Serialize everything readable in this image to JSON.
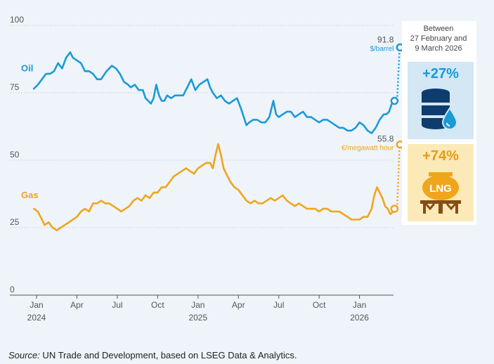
{
  "chart_data": {
    "type": "line",
    "title": "",
    "xlabel": "",
    "ylabel": "",
    "ylim": [
      0,
      100
    ],
    "yticks": [
      "0",
      "25",
      "50",
      "75",
      "100"
    ],
    "x_ticks": [
      {
        "label": "Jan",
        "year": "2024",
        "t": 0
      },
      {
        "label": "Apr",
        "year": "",
        "t": 3
      },
      {
        "label": "Jul",
        "year": "",
        "t": 6
      },
      {
        "label": "Oct",
        "year": "",
        "t": 9
      },
      {
        "label": "Jan",
        "year": "2025",
        "t": 12
      },
      {
        "label": "Apr",
        "year": "",
        "t": 15
      },
      {
        "label": "Jul",
        "year": "",
        "t": 18
      },
      {
        "label": "Oct",
        "year": "",
        "t": 21
      },
      {
        "label": "Jan",
        "year": "2026",
        "t": 24
      }
    ],
    "series": [
      {
        "name": "Oil",
        "unit": "$/barrel",
        "color": "#1a9ad6",
        "points": [
          [
            -0.2,
            76.5
          ],
          [
            0.1,
            78
          ],
          [
            0.4,
            80
          ],
          [
            0.7,
            82
          ],
          [
            1.0,
            82
          ],
          [
            1.3,
            83
          ],
          [
            1.6,
            86
          ],
          [
            1.9,
            84
          ],
          [
            2.2,
            88
          ],
          [
            2.5,
            90
          ],
          [
            2.7,
            88
          ],
          [
            3.0,
            87
          ],
          [
            3.3,
            86
          ],
          [
            3.6,
            83
          ],
          [
            3.9,
            83
          ],
          [
            4.2,
            82
          ],
          [
            4.5,
            80
          ],
          [
            4.8,
            80
          ],
          [
            5.2,
            83
          ],
          [
            5.6,
            85
          ],
          [
            5.9,
            84
          ],
          [
            6.2,
            82
          ],
          [
            6.5,
            79
          ],
          [
            6.8,
            78
          ],
          [
            7.0,
            77
          ],
          [
            7.3,
            78
          ],
          [
            7.6,
            76
          ],
          [
            7.9,
            76
          ],
          [
            8.1,
            73
          ],
          [
            8.3,
            72
          ],
          [
            8.5,
            71
          ],
          [
            8.7,
            73
          ],
          [
            8.9,
            78
          ],
          [
            9.1,
            74
          ],
          [
            9.3,
            72
          ],
          [
            9.5,
            72
          ],
          [
            9.7,
            74
          ],
          [
            10.0,
            73
          ],
          [
            10.3,
            74
          ],
          [
            10.6,
            74
          ],
          [
            10.9,
            74
          ],
          [
            11.2,
            77
          ],
          [
            11.5,
            80
          ],
          [
            11.8,
            76
          ],
          [
            12.1,
            78
          ],
          [
            12.4,
            79
          ],
          [
            12.7,
            80
          ],
          [
            12.9,
            77
          ],
          [
            13.1,
            75
          ],
          [
            13.4,
            73
          ],
          [
            13.7,
            74
          ],
          [
            14.0,
            72
          ],
          [
            14.3,
            71
          ],
          [
            14.6,
            72
          ],
          [
            14.9,
            73
          ],
          [
            15.2,
            69
          ],
          [
            15.4,
            66
          ],
          [
            15.6,
            63
          ],
          [
            15.8,
            64
          ],
          [
            16.1,
            65
          ],
          [
            16.4,
            65
          ],
          [
            16.7,
            64
          ],
          [
            17.0,
            64
          ],
          [
            17.3,
            66
          ],
          [
            17.6,
            72
          ],
          [
            17.8,
            67
          ],
          [
            18.0,
            66
          ],
          [
            18.3,
            67
          ],
          [
            18.6,
            68
          ],
          [
            18.9,
            68
          ],
          [
            19.2,
            66
          ],
          [
            19.5,
            67
          ],
          [
            19.8,
            68
          ],
          [
            20.1,
            66
          ],
          [
            20.4,
            66
          ],
          [
            20.7,
            65
          ],
          [
            21.0,
            64
          ],
          [
            21.3,
            65
          ],
          [
            21.6,
            65
          ],
          [
            21.9,
            64
          ],
          [
            22.2,
            63
          ],
          [
            22.5,
            62
          ],
          [
            22.8,
            62
          ],
          [
            23.1,
            61
          ],
          [
            23.4,
            61
          ],
          [
            23.7,
            62
          ],
          [
            24.0,
            64
          ],
          [
            24.3,
            63
          ],
          [
            24.6,
            61
          ],
          [
            24.9,
            60
          ],
          [
            25.2,
            62
          ],
          [
            25.5,
            65
          ],
          [
            25.8,
            67
          ],
          [
            26.0,
            67
          ],
          [
            26.2,
            68
          ],
          [
            26.4,
            71
          ],
          [
            26.6,
            72
          ]
        ],
        "end_label": "91.8",
        "end_value": 91.8,
        "start_marker_value": 72,
        "change_label": "+27%"
      },
      {
        "name": "Gas",
        "unit": "€/megawatt hour",
        "color": "#f0a51c",
        "points": [
          [
            -0.2,
            32
          ],
          [
            0.1,
            31
          ],
          [
            0.3,
            29
          ],
          [
            0.6,
            26
          ],
          [
            0.9,
            27
          ],
          [
            1.2,
            25
          ],
          [
            1.5,
            24
          ],
          [
            1.8,
            25
          ],
          [
            2.1,
            26
          ],
          [
            2.4,
            27
          ],
          [
            2.7,
            28
          ],
          [
            3.0,
            29
          ],
          [
            3.3,
            31
          ],
          [
            3.6,
            32
          ],
          [
            3.9,
            31
          ],
          [
            4.2,
            34
          ],
          [
            4.5,
            34
          ],
          [
            4.8,
            35
          ],
          [
            5.1,
            34
          ],
          [
            5.4,
            34
          ],
          [
            5.7,
            33
          ],
          [
            6.0,
            32
          ],
          [
            6.3,
            31
          ],
          [
            6.6,
            32
          ],
          [
            6.9,
            33
          ],
          [
            7.2,
            35
          ],
          [
            7.5,
            36
          ],
          [
            7.8,
            35
          ],
          [
            8.1,
            37
          ],
          [
            8.4,
            36
          ],
          [
            8.7,
            38
          ],
          [
            9.0,
            38
          ],
          [
            9.3,
            40
          ],
          [
            9.6,
            40
          ],
          [
            9.9,
            42
          ],
          [
            10.2,
            44
          ],
          [
            10.5,
            45
          ],
          [
            10.8,
            46
          ],
          [
            11.1,
            47
          ],
          [
            11.4,
            46
          ],
          [
            11.7,
            45
          ],
          [
            12.0,
            47
          ],
          [
            12.3,
            48
          ],
          [
            12.6,
            49
          ],
          [
            12.9,
            49
          ],
          [
            13.1,
            47
          ],
          [
            13.3,
            52
          ],
          [
            13.5,
            56
          ],
          [
            13.7,
            52
          ],
          [
            13.9,
            47
          ],
          [
            14.1,
            45
          ],
          [
            14.4,
            42
          ],
          [
            14.7,
            40
          ],
          [
            15.0,
            39
          ],
          [
            15.3,
            37
          ],
          [
            15.6,
            35
          ],
          [
            15.9,
            34
          ],
          [
            16.2,
            35
          ],
          [
            16.5,
            34
          ],
          [
            16.8,
            34
          ],
          [
            17.1,
            35
          ],
          [
            17.4,
            36
          ],
          [
            17.7,
            35
          ],
          [
            18.0,
            36
          ],
          [
            18.3,
            37
          ],
          [
            18.6,
            35
          ],
          [
            18.9,
            34
          ],
          [
            19.2,
            33
          ],
          [
            19.5,
            34
          ],
          [
            19.8,
            33
          ],
          [
            20.1,
            32
          ],
          [
            20.4,
            32
          ],
          [
            20.7,
            32
          ],
          [
            21.0,
            31
          ],
          [
            21.3,
            32
          ],
          [
            21.6,
            32
          ],
          [
            21.9,
            31
          ],
          [
            22.2,
            31
          ],
          [
            22.5,
            31
          ],
          [
            22.8,
            30
          ],
          [
            23.1,
            29
          ],
          [
            23.4,
            28
          ],
          [
            23.7,
            28
          ],
          [
            24.0,
            28
          ],
          [
            24.3,
            29
          ],
          [
            24.6,
            29
          ],
          [
            24.9,
            32
          ],
          [
            25.1,
            37
          ],
          [
            25.3,
            40
          ],
          [
            25.5,
            38
          ],
          [
            25.7,
            36
          ],
          [
            25.9,
            33
          ],
          [
            26.1,
            32
          ],
          [
            26.3,
            30
          ],
          [
            26.5,
            31
          ],
          [
            26.6,
            32
          ]
        ],
        "end_label": "55.8",
        "end_value": 55.8,
        "start_marker_value": 32,
        "change_label": "+74%"
      }
    ]
  },
  "side_panel": {
    "header": [
      "Between",
      "27 February and",
      "9 March 2026"
    ],
    "oil_icon": "oil-barrel-icon",
    "gas_icon": "lng-tank-icon",
    "lng_text": "LNG"
  },
  "source": {
    "prefix": "Source:",
    "text": " UN Trade and Development, based on LSEG Data & Analytics."
  }
}
